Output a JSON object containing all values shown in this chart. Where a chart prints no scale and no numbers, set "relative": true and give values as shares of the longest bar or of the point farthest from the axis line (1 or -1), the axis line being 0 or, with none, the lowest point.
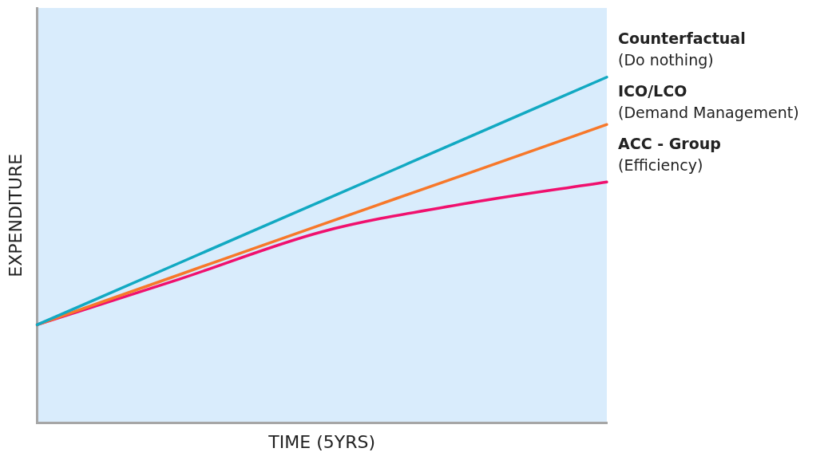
{
  "chart_data": {
    "type": "line",
    "relative": true,
    "xlabel": "TIME (5YRS)",
    "ylabel": "EXPENDITURE",
    "categories": [
      null,
      null,
      null,
      null,
      null
    ],
    "grid": false,
    "legend": false,
    "marker": "none",
    "line_style": "solid",
    "series": [
      {
        "name": "Counterfactual\n(Do nothing)",
        "color": "#12a9c2",
        "values": [
          0.284,
          0.463,
          0.642,
          0.821,
          1
        ]
      },
      {
        "name": "ICO/LCO\n(Demand Management)",
        "color": "#f7782a",
        "values": [
          0.284,
          0.429,
          0.574,
          0.718,
          0.863
        ]
      },
      {
        "name": "ACC - Group\n(Efficiency)",
        "color": "#f0106e",
        "values": [
          0.284,
          0.416,
          0.553,
          0.634,
          0.697
        ]
      }
    ]
  }
}
